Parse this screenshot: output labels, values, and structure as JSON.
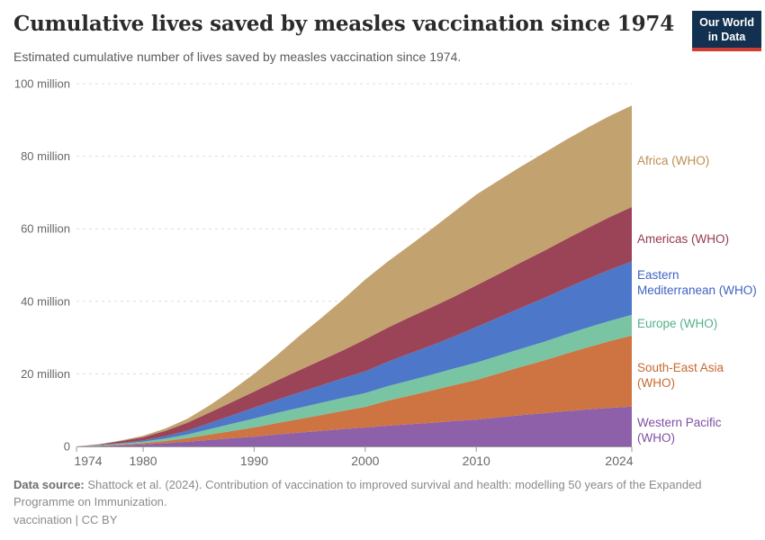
{
  "header": {
    "title": "Cumulative lives saved by measles vaccination since 1974",
    "subtitle": "Estimated cumulative number of lives saved by measles vaccination since 1974."
  },
  "logo": {
    "line1": "Our World",
    "line2": "in Data",
    "bg_color": "#12304F",
    "accent_color": "#D13D33"
  },
  "chart_data": {
    "type": "area",
    "stacked": true,
    "title": "Cumulative lives saved by measles vaccination since 1974",
    "x": [
      1974,
      1976,
      1978,
      1980,
      1982,
      1984,
      1986,
      1988,
      1990,
      1992,
      1994,
      1996,
      1998,
      2000,
      2002,
      2004,
      2006,
      2008,
      2010,
      2012,
      2014,
      2016,
      2018,
      2020,
      2022,
      2024
    ],
    "x_unit": "year",
    "y_unit": "lives saved (millions)",
    "ylim": [
      0,
      100
    ],
    "grid": "horizontal dashed gridlines",
    "legend": "colored text labels at right edge of plot",
    "stack_note": "series listed top-to-bottom as in legend; stacking order bottom-to-top is the reverse (Western Pacific at bottom, Africa on top)",
    "series": [
      {
        "name": "africa",
        "label": "Africa (WHO)",
        "color": "#C2A26E",
        "label_color": "#BE8E51",
        "values": [
          0,
          0.05,
          0.15,
          0.35,
          0.65,
          1.1,
          2.0,
          3.3,
          4.9,
          6.9,
          9.4,
          11.6,
          14.0,
          16.5,
          18.2,
          19.8,
          21.6,
          23.4,
          25.0,
          25.8,
          26.4,
          27.0,
          27.4,
          27.7,
          27.9,
          28.0
        ]
      },
      {
        "name": "americas",
        "label": "Americas (WHO)",
        "color": "#9C4457",
        "label_color": "#95394C",
        "values": [
          0,
          0.15,
          0.55,
          0.9,
          1.5,
          2.2,
          2.9,
          3.65,
          4.4,
          5.3,
          6.1,
          6.9,
          7.7,
          8.8,
          9.4,
          10.0,
          10.5,
          11.0,
          11.5,
          12.0,
          12.5,
          13.0,
          13.5,
          14.0,
          14.5,
          15.0
        ]
      },
      {
        "name": "eastern-mediterranean",
        "label": "Eastern Mediterranean (WHO)",
        "color": "#4D77C8",
        "label_color": "#3E63C3",
        "values": [
          0,
          0.1,
          0.2,
          0.35,
          0.65,
          1.05,
          1.65,
          2.3,
          3.0,
          3.6,
          4.2,
          4.8,
          5.4,
          6.0,
          6.7,
          7.4,
          8.1,
          8.8,
          9.8,
          10.5,
          11.3,
          12.0,
          12.7,
          13.4,
          14.1,
          14.7
        ]
      },
      {
        "name": "europe",
        "label": "Europe (WHO)",
        "color": "#78C4A3",
        "label_color": "#54B08A",
        "values": [
          0,
          0.1,
          0.25,
          0.4,
          0.65,
          1.0,
          1.5,
          2.0,
          2.5,
          2.8,
          3.1,
          3.4,
          3.6,
          3.8,
          4.0,
          4.2,
          4.4,
          4.6,
          4.8,
          4.9,
          5.0,
          5.15,
          5.3,
          5.45,
          5.6,
          5.7
        ]
      },
      {
        "name": "south-east-asia",
        "label": "South-East Asia (WHO)",
        "color": "#CE7342",
        "label_color": "#C8692F",
        "values": [
          0,
          0.1,
          0.2,
          0.35,
          0.6,
          1.0,
          1.5,
          2.0,
          2.5,
          3.1,
          3.7,
          4.3,
          5.0,
          5.7,
          6.9,
          7.9,
          8.9,
          9.9,
          10.9,
          12.1,
          13.3,
          14.5,
          15.8,
          17.1,
          18.4,
          19.6
        ]
      },
      {
        "name": "western-pacific",
        "label": "Western Pacific (WHO)",
        "color": "#8D60A9",
        "label_color": "#7E4FA3",
        "values": [
          0,
          0.1,
          0.3,
          0.55,
          0.9,
          1.3,
          1.8,
          2.25,
          2.7,
          3.3,
          3.8,
          4.3,
          4.8,
          5.2,
          5.7,
          6.1,
          6.5,
          7.0,
          7.4,
          8.0,
          8.6,
          9.1,
          9.7,
          10.2,
          10.6,
          11.0
        ]
      }
    ],
    "totals_2024": {
      "africa": 28.0,
      "americas": 15.0,
      "eastern-mediterranean": 14.7,
      "europe": 5.7,
      "south-east-asia": 19.6,
      "western-pacific": 11.0,
      "all": 94.0
    },
    "yticks": [
      {
        "value": 0,
        "label": "0"
      },
      {
        "value": 20,
        "label": "20 million"
      },
      {
        "value": 40,
        "label": "40 million"
      },
      {
        "value": 60,
        "label": "60 million"
      },
      {
        "value": 80,
        "label": "80 million"
      },
      {
        "value": 100,
        "label": "100 million"
      }
    ],
    "xticks": [
      {
        "value": 1974,
        "label": "1974"
      },
      {
        "value": 1980,
        "label": "1980"
      },
      {
        "value": 1990,
        "label": "1990"
      },
      {
        "value": 2000,
        "label": "2000"
      },
      {
        "value": 2010,
        "label": "2010"
      },
      {
        "value": 2024,
        "label": "2024"
      }
    ]
  },
  "footer": {
    "source_label": "Data source:",
    "source_text": " Shattock et al. (2024). Contribution of vaccination to improved survival and health: modelling 50 years of the Expanded Programme on Immunization.",
    "license": "vaccination | CC BY"
  }
}
